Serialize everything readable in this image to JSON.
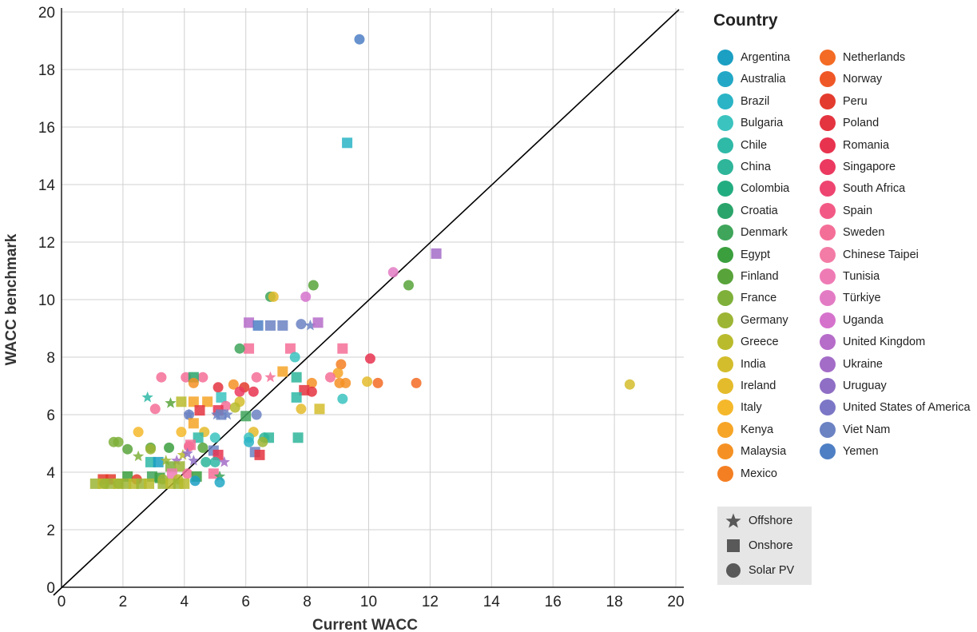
{
  "chart_data": {
    "type": "scatter",
    "xlabel": "Current WACC",
    "ylabel": "WACC benchmark",
    "xlim": [
      0,
      20
    ],
    "ylim": [
      0,
      20
    ],
    "xticks": [
      "0",
      "2",
      "4",
      "6",
      "8",
      "10",
      "12",
      "14",
      "16",
      "18",
      "20"
    ],
    "yticks": [
      "0",
      "2",
      "4",
      "6",
      "8",
      "10",
      "12",
      "14",
      "16",
      "18",
      "20"
    ],
    "grid": true,
    "reference_line": {
      "x": [
        0,
        20
      ],
      "y": [
        0,
        20
      ]
    },
    "legend": {
      "title": "Country",
      "placement": "right",
      "countries": [
        {
          "name": "Argentina",
          "color": "#1b9fc3"
        },
        {
          "name": "Australia",
          "color": "#22a8c6"
        },
        {
          "name": "Brazil",
          "color": "#2ab4c6"
        },
        {
          "name": "Bulgaria",
          "color": "#3bc3bf"
        },
        {
          "name": "Chile",
          "color": "#2fb9a7"
        },
        {
          "name": "China",
          "color": "#2eb59a"
        },
        {
          "name": "Colombia",
          "color": "#22ad80"
        },
        {
          "name": "Croatia",
          "color": "#2aa46a"
        },
        {
          "name": "Denmark",
          "color": "#3ea55a"
        },
        {
          "name": "Egypt",
          "color": "#3b9f3e"
        },
        {
          "name": "Finland",
          "color": "#58a33a"
        },
        {
          "name": "France",
          "color": "#7eb03a"
        },
        {
          "name": "Germany",
          "color": "#9cb534"
        },
        {
          "name": "Greece",
          "color": "#b9bb2d"
        },
        {
          "name": "India",
          "color": "#d3bd2c"
        },
        {
          "name": "Ireland",
          "color": "#e4bb2b"
        },
        {
          "name": "Italy",
          "color": "#f5b82b"
        },
        {
          "name": "Kenya",
          "color": "#f6a527"
        },
        {
          "name": "Malaysia",
          "color": "#f59124"
        },
        {
          "name": "Mexico",
          "color": "#f47f23"
        },
        {
          "name": "Netherlands",
          "color": "#f36b24"
        },
        {
          "name": "Norway",
          "color": "#ef5726"
        },
        {
          "name": "Peru",
          "color": "#e33b2d"
        },
        {
          "name": "Poland",
          "color": "#e43440"
        },
        {
          "name": "Romania",
          "color": "#e8334f"
        },
        {
          "name": "Singapore",
          "color": "#eb3960"
        },
        {
          "name": "South Africa",
          "color": "#ee4470"
        },
        {
          "name": "Spain",
          "color": "#f25a85"
        },
        {
          "name": "Sweden",
          "color": "#f46f98"
        },
        {
          "name": "Chinese Taipei",
          "color": "#f27ca5"
        },
        {
          "name": "Tunisia",
          "color": "#ef7bb5"
        },
        {
          "name": "Türkiye",
          "color": "#e37bc4"
        },
        {
          "name": "Uganda",
          "color": "#d572cc"
        },
        {
          "name": "United Kingdom",
          "color": "#b66cc9"
        },
        {
          "name": "Ukraine",
          "color": "#a36cc7"
        },
        {
          "name": "Uruguay",
          "color": "#8f6ec5"
        },
        {
          "name": "United States of America",
          "color": "#7c76c6"
        },
        {
          "name": "Viet Nam",
          "color": "#6b82c3"
        },
        {
          "name": "Yemen",
          "color": "#4e7fc4"
        }
      ],
      "shapes": [
        {
          "label": "Offshore",
          "shape": "star",
          "color": "#595959"
        },
        {
          "label": "Onshore",
          "shape": "square",
          "color": "#595959"
        },
        {
          "label": "Solar PV",
          "shape": "circle",
          "color": "#595959"
        }
      ]
    },
    "points": [
      {
        "x": 9.7,
        "y": 19.05,
        "c": "Yemen",
        "s": "circle"
      },
      {
        "x": 9.3,
        "y": 15.45,
        "c": "Brazil",
        "s": "square"
      },
      {
        "x": 12.2,
        "y": 11.6,
        "c": "Ukraine",
        "s": "square"
      },
      {
        "x": 10.8,
        "y": 10.95,
        "c": "Türkiye",
        "s": "circle"
      },
      {
        "x": 11.3,
        "y": 10.5,
        "c": "Finland",
        "s": "circle"
      },
      {
        "x": 8.2,
        "y": 10.5,
        "c": "Finland",
        "s": "circle"
      },
      {
        "x": 6.8,
        "y": 10.1,
        "c": "Denmark",
        "s": "circle"
      },
      {
        "x": 6.9,
        "y": 10.1,
        "c": "Ireland",
        "s": "circle"
      },
      {
        "x": 7.95,
        "y": 10.1,
        "c": "Uganda",
        "s": "circle"
      },
      {
        "x": 18.5,
        "y": 7.05,
        "c": "India",
        "s": "circle"
      },
      {
        "x": 6.1,
        "y": 9.2,
        "c": "United Kingdom",
        "s": "square"
      },
      {
        "x": 6.4,
        "y": 9.1,
        "c": "Yemen",
        "s": "square"
      },
      {
        "x": 6.8,
        "y": 9.1,
        "c": "Viet Nam",
        "s": "square"
      },
      {
        "x": 7.2,
        "y": 9.1,
        "c": "Viet Nam",
        "s": "square"
      },
      {
        "x": 7.8,
        "y": 9.15,
        "c": "Viet Nam",
        "s": "circle"
      },
      {
        "x": 8.1,
        "y": 9.1,
        "c": "Viet Nam",
        "s": "star"
      },
      {
        "x": 8.35,
        "y": 9.2,
        "c": "United Kingdom",
        "s": "square"
      },
      {
        "x": 6.1,
        "y": 8.3,
        "c": "Sweden",
        "s": "square"
      },
      {
        "x": 7.45,
        "y": 8.3,
        "c": "Sweden",
        "s": "square"
      },
      {
        "x": 9.15,
        "y": 8.3,
        "c": "Sweden",
        "s": "square"
      },
      {
        "x": 5.8,
        "y": 8.3,
        "c": "Denmark",
        "s": "circle"
      },
      {
        "x": 7.6,
        "y": 8.0,
        "c": "Bulgaria",
        "s": "circle"
      },
      {
        "x": 10.05,
        "y": 7.95,
        "c": "Romania",
        "s": "circle"
      },
      {
        "x": 9.1,
        "y": 7.75,
        "c": "Mexico",
        "s": "circle"
      },
      {
        "x": 7.2,
        "y": 7.5,
        "c": "Kenya",
        "s": "square"
      },
      {
        "x": 9.0,
        "y": 7.45,
        "c": "Kenya",
        "s": "circle"
      },
      {
        "x": 9.95,
        "y": 7.15,
        "c": "Ireland",
        "s": "circle"
      },
      {
        "x": 10.3,
        "y": 7.1,
        "c": "Netherlands",
        "s": "circle"
      },
      {
        "x": 11.55,
        "y": 7.1,
        "c": "Netherlands",
        "s": "circle"
      },
      {
        "x": 9.05,
        "y": 7.1,
        "c": "Malaysia",
        "s": "circle"
      },
      {
        "x": 9.25,
        "y": 7.1,
        "c": "Malaysia",
        "s": "circle"
      },
      {
        "x": 8.15,
        "y": 7.1,
        "c": "Malaysia",
        "s": "circle"
      },
      {
        "x": 7.65,
        "y": 7.3,
        "c": "China",
        "s": "square"
      },
      {
        "x": 8.75,
        "y": 7.3,
        "c": "Sweden",
        "s": "circle"
      },
      {
        "x": 6.35,
        "y": 7.3,
        "c": "Sweden",
        "s": "circle"
      },
      {
        "x": 6.8,
        "y": 7.3,
        "c": "Sweden",
        "s": "star"
      },
      {
        "x": 3.25,
        "y": 7.3,
        "c": "Sweden",
        "s": "circle"
      },
      {
        "x": 4.05,
        "y": 7.3,
        "c": "Sweden",
        "s": "circle"
      },
      {
        "x": 4.6,
        "y": 7.3,
        "c": "Sweden",
        "s": "circle"
      },
      {
        "x": 4.3,
        "y": 7.3,
        "c": "Croatia",
        "s": "square"
      },
      {
        "x": 4.3,
        "y": 7.1,
        "c": "Malaysia",
        "s": "circle"
      },
      {
        "x": 5.6,
        "y": 7.05,
        "c": "Malaysia",
        "s": "circle"
      },
      {
        "x": 5.95,
        "y": 6.95,
        "c": "Peru",
        "s": "circle"
      },
      {
        "x": 5.1,
        "y": 6.95,
        "c": "Poland",
        "s": "circle"
      },
      {
        "x": 7.9,
        "y": 6.85,
        "c": "Poland",
        "s": "square"
      },
      {
        "x": 8.15,
        "y": 6.8,
        "c": "Poland",
        "s": "circle"
      },
      {
        "x": 6.25,
        "y": 6.8,
        "c": "Romania",
        "s": "circle"
      },
      {
        "x": 5.8,
        "y": 6.8,
        "c": "Singapore",
        "s": "circle"
      },
      {
        "x": 2.8,
        "y": 6.6,
        "c": "Chile",
        "s": "star"
      },
      {
        "x": 5.2,
        "y": 6.6,
        "c": "Bulgaria",
        "s": "square"
      },
      {
        "x": 7.65,
        "y": 6.6,
        "c": "Chile",
        "s": "square"
      },
      {
        "x": 9.15,
        "y": 6.55,
        "c": "Bulgaria",
        "s": "circle"
      },
      {
        "x": 3.55,
        "y": 6.4,
        "c": "Finland",
        "s": "star"
      },
      {
        "x": 3.9,
        "y": 6.45,
        "c": "Greece",
        "s": "square"
      },
      {
        "x": 4.3,
        "y": 6.45,
        "c": "Kenya",
        "s": "square"
      },
      {
        "x": 4.75,
        "y": 6.45,
        "c": "Kenya",
        "s": "square"
      },
      {
        "x": 5.8,
        "y": 6.45,
        "c": "India",
        "s": "circle"
      },
      {
        "x": 3.05,
        "y": 6.2,
        "c": "Sweden",
        "s": "circle"
      },
      {
        "x": 5.35,
        "y": 6.3,
        "c": "Sweden",
        "s": "circle"
      },
      {
        "x": 5.65,
        "y": 6.25,
        "c": "Greece",
        "s": "circle"
      },
      {
        "x": 7.8,
        "y": 6.2,
        "c": "Ireland",
        "s": "circle"
      },
      {
        "x": 8.4,
        "y": 6.2,
        "c": "India",
        "s": "square"
      },
      {
        "x": 4.5,
        "y": 6.15,
        "c": "Poland",
        "s": "square"
      },
      {
        "x": 5.1,
        "y": 6.15,
        "c": "Romania",
        "s": "square"
      },
      {
        "x": 4.15,
        "y": 6.0,
        "c": "Viet Nam",
        "s": "circle"
      },
      {
        "x": 4.15,
        "y": 6.0,
        "c": "Viet Nam",
        "s": "star"
      },
      {
        "x": 5.2,
        "y": 6.0,
        "c": "Viet Nam",
        "s": "square"
      },
      {
        "x": 5.4,
        "y": 6.0,
        "c": "Viet Nam",
        "s": "star"
      },
      {
        "x": 6.35,
        "y": 6.0,
        "c": "Viet Nam",
        "s": "circle"
      },
      {
        "x": 5.05,
        "y": 6.0,
        "c": "Viet Nam",
        "s": "star"
      },
      {
        "x": 6.0,
        "y": 5.95,
        "c": "Denmark",
        "s": "square"
      },
      {
        "x": 2.5,
        "y": 5.4,
        "c": "Italy",
        "s": "circle"
      },
      {
        "x": 3.9,
        "y": 5.4,
        "c": "Italy",
        "s": "circle"
      },
      {
        "x": 4.3,
        "y": 5.7,
        "c": "Kenya",
        "s": "square"
      },
      {
        "x": 4.65,
        "y": 5.4,
        "c": "Ireland",
        "s": "circle"
      },
      {
        "x": 6.25,
        "y": 5.4,
        "c": "Ireland",
        "s": "circle"
      },
      {
        "x": 4.45,
        "y": 5.2,
        "c": "Chile",
        "s": "square"
      },
      {
        "x": 5.0,
        "y": 5.2,
        "c": "Bulgaria",
        "s": "circle"
      },
      {
        "x": 6.1,
        "y": 5.2,
        "c": "Bulgaria",
        "s": "circle"
      },
      {
        "x": 6.6,
        "y": 5.2,
        "c": "China",
        "s": "circle"
      },
      {
        "x": 6.75,
        "y": 5.2,
        "c": "China",
        "s": "square"
      },
      {
        "x": 7.7,
        "y": 5.2,
        "c": "China",
        "s": "square"
      },
      {
        "x": 6.1,
        "y": 5.05,
        "c": "Brazil",
        "s": "circle"
      },
      {
        "x": 6.55,
        "y": 5.05,
        "c": "Germany",
        "s": "circle"
      },
      {
        "x": 1.7,
        "y": 5.05,
        "c": "France",
        "s": "circle"
      },
      {
        "x": 1.85,
        "y": 5.05,
        "c": "France",
        "s": "circle"
      },
      {
        "x": 2.15,
        "y": 4.8,
        "c": "Finland",
        "s": "circle"
      },
      {
        "x": 2.9,
        "y": 4.85,
        "c": "Finland",
        "s": "circle"
      },
      {
        "x": 3.5,
        "y": 4.85,
        "c": "Egypt",
        "s": "circle"
      },
      {
        "x": 2.9,
        "y": 4.8,
        "c": "Germany",
        "s": "circle"
      },
      {
        "x": 4.15,
        "y": 4.9,
        "c": "Spain",
        "s": "circle"
      },
      {
        "x": 4.2,
        "y": 4.95,
        "c": "Sweden",
        "s": "square"
      },
      {
        "x": 4.6,
        "y": 4.85,
        "c": "Finland",
        "s": "circle"
      },
      {
        "x": 4.95,
        "y": 4.75,
        "c": "Viet Nam",
        "s": "square"
      },
      {
        "x": 5.1,
        "y": 4.6,
        "c": "Romania",
        "s": "square"
      },
      {
        "x": 6.3,
        "y": 4.7,
        "c": "Viet Nam",
        "s": "square"
      },
      {
        "x": 6.45,
        "y": 4.6,
        "c": "Poland",
        "s": "square"
      },
      {
        "x": 2.5,
        "y": 4.55,
        "c": "France",
        "s": "star"
      },
      {
        "x": 3.95,
        "y": 4.6,
        "c": "Greece",
        "s": "star"
      },
      {
        "x": 4.1,
        "y": 4.65,
        "c": "Uruguay",
        "s": "star"
      },
      {
        "x": 2.9,
        "y": 4.35,
        "c": "Chile",
        "s": "square"
      },
      {
        "x": 3.15,
        "y": 4.35,
        "c": "Argentina",
        "s": "square"
      },
      {
        "x": 3.4,
        "y": 4.4,
        "c": "Germany",
        "s": "star"
      },
      {
        "x": 3.75,
        "y": 4.4,
        "c": "Ukraine",
        "s": "star"
      },
      {
        "x": 4.3,
        "y": 4.4,
        "c": "Uruguay",
        "s": "star"
      },
      {
        "x": 4.7,
        "y": 4.35,
        "c": "China",
        "s": "circle"
      },
      {
        "x": 5.0,
        "y": 4.35,
        "c": "Chile",
        "s": "circle"
      },
      {
        "x": 5.3,
        "y": 4.35,
        "c": "Ukraine",
        "s": "star"
      },
      {
        "x": 3.55,
        "y": 4.2,
        "c": "France",
        "s": "square"
      },
      {
        "x": 3.85,
        "y": 4.2,
        "c": "Germany",
        "s": "square"
      },
      {
        "x": 3.6,
        "y": 3.95,
        "c": "Tunisia",
        "s": "square"
      },
      {
        "x": 4.1,
        "y": 3.95,
        "c": "Sweden",
        "s": "circle"
      },
      {
        "x": 4.95,
        "y": 3.95,
        "c": "Sweden",
        "s": "square"
      },
      {
        "x": 2.95,
        "y": 3.85,
        "c": "Denmark",
        "s": "square"
      },
      {
        "x": 3.2,
        "y": 3.8,
        "c": "Egypt",
        "s": "square"
      },
      {
        "x": 4.4,
        "y": 3.85,
        "c": "Egypt",
        "s": "square"
      },
      {
        "x": 5.15,
        "y": 3.85,
        "c": "Denmark",
        "s": "star"
      },
      {
        "x": 2.15,
        "y": 3.85,
        "c": "Egypt",
        "s": "square"
      },
      {
        "x": 4.35,
        "y": 3.7,
        "c": "Argentina",
        "s": "circle"
      },
      {
        "x": 5.15,
        "y": 3.65,
        "c": "Australia",
        "s": "circle"
      },
      {
        "x": 1.35,
        "y": 3.75,
        "c": "Peru",
        "s": "square"
      },
      {
        "x": 1.6,
        "y": 3.75,
        "c": "Peru",
        "s": "square"
      },
      {
        "x": 2.45,
        "y": 3.75,
        "c": "Peru",
        "s": "circle"
      },
      {
        "x": 3.3,
        "y": 3.75,
        "c": "Germany",
        "s": "circle"
      },
      {
        "x": 3.8,
        "y": 3.75,
        "c": "Greece",
        "s": "circle"
      },
      {
        "x": 1.1,
        "y": 3.6,
        "c": "Germany",
        "s": "square"
      },
      {
        "x": 1.35,
        "y": 3.6,
        "c": "Greece",
        "s": "square"
      },
      {
        "x": 1.6,
        "y": 3.6,
        "c": "Germany",
        "s": "square"
      },
      {
        "x": 1.85,
        "y": 3.6,
        "c": "Greece",
        "s": "square"
      },
      {
        "x": 2.1,
        "y": 3.6,
        "c": "Germany",
        "s": "square"
      },
      {
        "x": 2.35,
        "y": 3.6,
        "c": "Greece",
        "s": "square"
      },
      {
        "x": 2.6,
        "y": 3.6,
        "c": "Germany",
        "s": "square"
      },
      {
        "x": 2.85,
        "y": 3.6,
        "c": "Greece",
        "s": "square"
      },
      {
        "x": 3.3,
        "y": 3.6,
        "c": "Germany",
        "s": "square"
      },
      {
        "x": 3.55,
        "y": 3.6,
        "c": "Greece",
        "s": "square"
      },
      {
        "x": 3.8,
        "y": 3.6,
        "c": "Germany",
        "s": "square"
      },
      {
        "x": 4.0,
        "y": 3.6,
        "c": "Greece",
        "s": "square"
      },
      {
        "x": 1.4,
        "y": 3.6,
        "c": "Germany",
        "s": "circle"
      },
      {
        "x": 1.85,
        "y": 3.6,
        "c": "Germany",
        "s": "circle"
      }
    ]
  }
}
